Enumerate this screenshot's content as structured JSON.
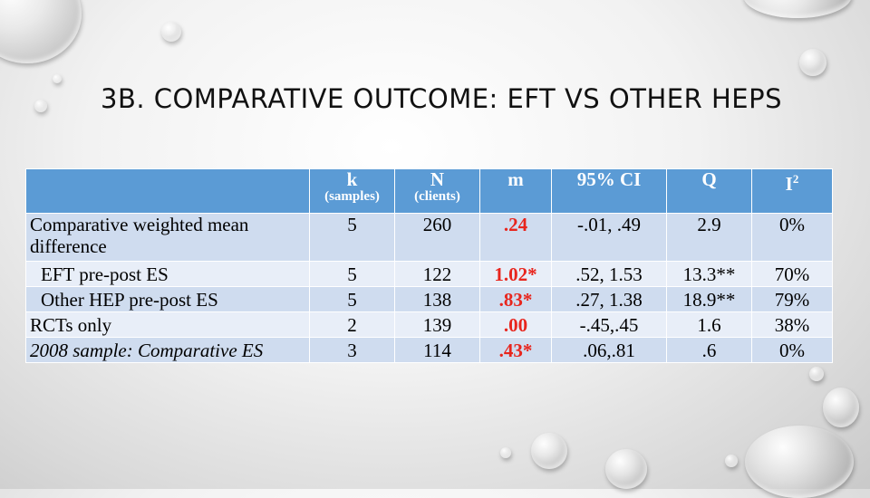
{
  "title": "3B. COMPARATIVE OUTCOME: EFT VS OTHER HEPS",
  "table": {
    "headers": [
      {
        "main": "",
        "sub": ""
      },
      {
        "main": "k",
        "sub": "(samples)"
      },
      {
        "main": "N",
        "sub": "(clients)"
      },
      {
        "main": "m",
        "sub": ""
      },
      {
        "main": "95% CI",
        "sub": ""
      },
      {
        "main": "Q",
        "sub": ""
      },
      {
        "main": "I",
        "sup": "2"
      }
    ],
    "rows": [
      {
        "label": "Comparative weighted mean difference",
        "k": "5",
        "n": "260",
        "m": ".24",
        "ci": "-.01, .49",
        "q": "2.9",
        "i2": "0%"
      },
      {
        "label": "EFT pre-post ES",
        "k": "5",
        "n": "122",
        "m": "1.02*",
        "ci": ".52, 1.53",
        "q": "13.3**",
        "i2": "70%"
      },
      {
        "label": "Other HEP pre-post ES",
        "k": "5",
        "n": "138",
        "m": ".83*",
        "ci": ".27, 1.38",
        "q": "18.9**",
        "i2": "79%"
      },
      {
        "label": "RCTs only",
        "k": "2",
        "n": "139",
        "m": ".00",
        "ci": "-.45,.45",
        "q": "1.6",
        "i2": "38%"
      },
      {
        "label": "2008 sample: Comparative ES",
        "k": "3",
        "n": "114",
        "m": ".43*",
        "ci": ".06,.81",
        "q": ".6",
        "i2": "0%"
      }
    ]
  },
  "colors": {
    "header_bg": "#5b9bd5",
    "row_dark": "#cfdcef",
    "row_light": "#e8eef8",
    "highlight": "#e8251d"
  }
}
